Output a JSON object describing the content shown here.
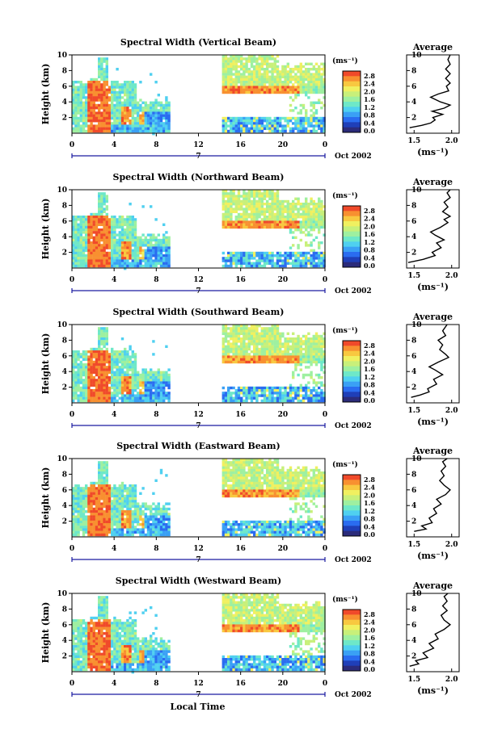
{
  "chart_data": [
    {
      "type": "heatmap",
      "title": "Spectral Width (Vertical Beam)",
      "beam": "vertical",
      "ylabel": "Height (km)",
      "ylim": [
        0,
        10
      ],
      "yticks": [
        2,
        4,
        6,
        8,
        10
      ],
      "xticks": [
        "0",
        "4",
        "8",
        "12",
        "16",
        "20",
        "0"
      ],
      "xlim": [
        0,
        24
      ],
      "date_line": {
        "day": "7",
        "label": "Oct 2002"
      },
      "colorbar": {
        "unit": "(ms⁻¹)",
        "ticks": [
          "2.8",
          "2.4",
          "2.0",
          "1.6",
          "1.2",
          "0.8",
          "0.4",
          "0.0"
        ]
      },
      "average": {
        "title": "Average",
        "xlabel": "(ms⁻¹)",
        "xticks": [
          "1.5",
          "2.0"
        ],
        "xlim": [
          1.4,
          2.1
        ],
        "yticks": [
          "2",
          "4",
          "6",
          "8",
          "10"
        ],
        "profile": [
          [
            1.44,
            0.7
          ],
          [
            1.6,
            1.0
          ],
          [
            1.72,
            1.3
          ],
          [
            1.78,
            1.7
          ],
          [
            1.75,
            2.0
          ],
          [
            1.88,
            2.4
          ],
          [
            1.74,
            2.8
          ],
          [
            1.9,
            3.2
          ],
          [
            1.98,
            3.6
          ],
          [
            1.85,
            4.0
          ],
          [
            1.72,
            4.6
          ],
          [
            1.82,
            5.0
          ],
          [
            1.96,
            5.4
          ],
          [
            1.93,
            6.0
          ],
          [
            1.98,
            6.4
          ],
          [
            1.92,
            7.0
          ],
          [
            1.98,
            7.6
          ],
          [
            1.92,
            8.2
          ],
          [
            1.98,
            8.8
          ],
          [
            1.95,
            9.4
          ],
          [
            1.98,
            10.0
          ]
        ]
      }
    },
    {
      "type": "heatmap",
      "title": "Spectral Width (Northward Beam)",
      "beam": "northward",
      "ylabel": "Height (km)",
      "ylim": [
        0,
        10
      ],
      "yticks": [
        2,
        4,
        6,
        8,
        10
      ],
      "xticks": [
        "0",
        "4",
        "8",
        "12",
        "16",
        "20",
        "0"
      ],
      "xlim": [
        0,
        24
      ],
      "date_line": {
        "day": "7",
        "label": "Oct 2002"
      },
      "colorbar": {
        "unit": "(ms⁻¹)",
        "ticks": [
          "2.8",
          "2.4",
          "2.0",
          "1.6",
          "1.2",
          "0.8",
          "0.4",
          "0.0"
        ]
      },
      "average": {
        "title": "Average",
        "xlabel": "(ms⁻¹)",
        "xticks": [
          "1.5",
          "2.0"
        ],
        "xlim": [
          1.4,
          2.1
        ],
        "yticks": [
          "2",
          "4",
          "6",
          "8",
          "10"
        ],
        "profile": [
          [
            1.42,
            0.7
          ],
          [
            1.62,
            1.1
          ],
          [
            1.78,
            1.6
          ],
          [
            1.74,
            2.0
          ],
          [
            1.86,
            2.6
          ],
          [
            1.8,
            3.2
          ],
          [
            1.9,
            3.6
          ],
          [
            1.78,
            4.2
          ],
          [
            1.72,
            4.6
          ],
          [
            1.85,
            5.2
          ],
          [
            1.95,
            5.8
          ],
          [
            1.9,
            6.2
          ],
          [
            1.98,
            6.6
          ],
          [
            1.88,
            7.2
          ],
          [
            1.95,
            7.8
          ],
          [
            1.9,
            8.4
          ],
          [
            1.98,
            9.0
          ],
          [
            1.94,
            9.6
          ],
          [
            1.98,
            10.0
          ]
        ]
      }
    },
    {
      "type": "heatmap",
      "title": "Spectral Width (Southward Beam)",
      "beam": "southward",
      "ylabel": "Height (km)",
      "ylim": [
        0,
        10
      ],
      "yticks": [
        2,
        4,
        6,
        8,
        10
      ],
      "xticks": [
        "0",
        "4",
        "8",
        "12",
        "16",
        "20",
        "0"
      ],
      "xlim": [
        0,
        24
      ],
      "date_line": {
        "day": "7",
        "label": "Oct 2002"
      },
      "colorbar": {
        "unit": "(ms⁻¹)",
        "ticks": [
          "2.8",
          "2.4",
          "2.0",
          "1.6",
          "1.2",
          "0.8",
          "0.4",
          "0.0"
        ]
      },
      "average": {
        "title": "Average",
        "xlabel": "(ms⁻¹)",
        "xticks": [
          "1.5",
          "2.0"
        ],
        "xlim": [
          1.4,
          2.1
        ],
        "yticks": [
          "2",
          "4",
          "6",
          "8",
          "10"
        ],
        "profile": [
          [
            1.46,
            0.7
          ],
          [
            1.58,
            1.0
          ],
          [
            1.7,
            1.4
          ],
          [
            1.68,
            1.8
          ],
          [
            1.8,
            2.4
          ],
          [
            1.76,
            3.0
          ],
          [
            1.88,
            3.6
          ],
          [
            1.78,
            4.2
          ],
          [
            1.7,
            4.6
          ],
          [
            1.82,
            5.2
          ],
          [
            1.96,
            5.8
          ],
          [
            1.92,
            6.2
          ],
          [
            1.84,
            6.8
          ],
          [
            1.88,
            7.4
          ],
          [
            1.82,
            8.0
          ],
          [
            1.92,
            8.6
          ],
          [
            1.88,
            9.2
          ],
          [
            1.94,
            10.0
          ]
        ]
      }
    },
    {
      "type": "heatmap",
      "title": "Spectral Width (Eastward Beam)",
      "beam": "eastward",
      "ylabel": "Height (km)",
      "ylim": [
        0,
        10
      ],
      "yticks": [
        2,
        4,
        6,
        8,
        10
      ],
      "xticks": [
        "0",
        "4",
        "8",
        "12",
        "16",
        "20",
        "0"
      ],
      "xlim": [
        0,
        24
      ],
      "date_line": {
        "day": "7",
        "label": "Oct 2002"
      },
      "colorbar": {
        "unit": "(ms⁻¹)",
        "ticks": [
          "2.8",
          "2.4",
          "2.0",
          "1.6",
          "1.2",
          "0.8",
          "0.4",
          "0.0"
        ]
      },
      "average": {
        "title": "Average",
        "xlabel": "(ms⁻¹)",
        "xticks": [
          "1.5",
          "2.0"
        ],
        "xlim": [
          1.4,
          2.1
        ],
        "yticks": [
          "2",
          "4",
          "6",
          "8",
          "10"
        ],
        "profile": [
          [
            1.5,
            0.7
          ],
          [
            1.66,
            1.0
          ],
          [
            1.6,
            1.4
          ],
          [
            1.74,
            1.8
          ],
          [
            1.7,
            2.4
          ],
          [
            1.8,
            3.0
          ],
          [
            1.76,
            3.6
          ],
          [
            1.86,
            4.2
          ],
          [
            1.8,
            4.8
          ],
          [
            1.92,
            5.4
          ],
          [
            1.98,
            6.0
          ],
          [
            1.9,
            6.6
          ],
          [
            1.84,
            7.2
          ],
          [
            1.9,
            7.8
          ],
          [
            1.86,
            8.4
          ],
          [
            1.92,
            9.0
          ],
          [
            1.88,
            9.6
          ],
          [
            1.94,
            10.0
          ]
        ]
      }
    },
    {
      "type": "heatmap",
      "title": "Spectral Width (Westward Beam)",
      "beam": "westward",
      "ylabel": "Height (km)",
      "ylim": [
        0,
        10
      ],
      "yticks": [
        2,
        4,
        6,
        8,
        10
      ],
      "xticks": [
        "0",
        "4",
        "8",
        "12",
        "16",
        "20",
        "0"
      ],
      "xlim": [
        0,
        24
      ],
      "date_line": {
        "day": "7",
        "label": "Oct 2002"
      },
      "colorbar": {
        "unit": "(ms⁻¹)",
        "ticks": [
          "2.8",
          "2.4",
          "2.0",
          "1.6",
          "1.2",
          "0.8",
          "0.4",
          "0.0"
        ]
      },
      "average": {
        "title": "Average",
        "xlabel": "(ms⁻¹)",
        "xticks": [
          "1.5",
          "2.0"
        ],
        "xlim": [
          1.4,
          2.1
        ],
        "yticks": [
          "2",
          "4",
          "6",
          "8",
          "10"
        ],
        "profile": [
          [
            1.44,
            0.7
          ],
          [
            1.56,
            1.0
          ],
          [
            1.52,
            1.4
          ],
          [
            1.68,
            1.8
          ],
          [
            1.62,
            2.4
          ],
          [
            1.76,
            3.0
          ],
          [
            1.7,
            3.6
          ],
          [
            1.82,
            4.2
          ],
          [
            1.78,
            4.8
          ],
          [
            1.9,
            5.4
          ],
          [
            1.98,
            6.0
          ],
          [
            1.9,
            6.6
          ],
          [
            1.86,
            7.2
          ],
          [
            1.94,
            7.8
          ],
          [
            1.88,
            8.4
          ],
          [
            1.94,
            9.0
          ],
          [
            1.9,
            9.6
          ],
          [
            1.95,
            10.0
          ]
        ]
      }
    }
  ],
  "footer": {
    "xlabel": "Local Time"
  },
  "colorscale": [
    "#2b2b7a",
    "#1f3fb8",
    "#2a6cf0",
    "#3aa0f5",
    "#4fd0f0",
    "#6ee8c8",
    "#9ef0a0",
    "#c8f07a",
    "#f0f060",
    "#f8c840",
    "#f89030",
    "#f04a2a"
  ]
}
